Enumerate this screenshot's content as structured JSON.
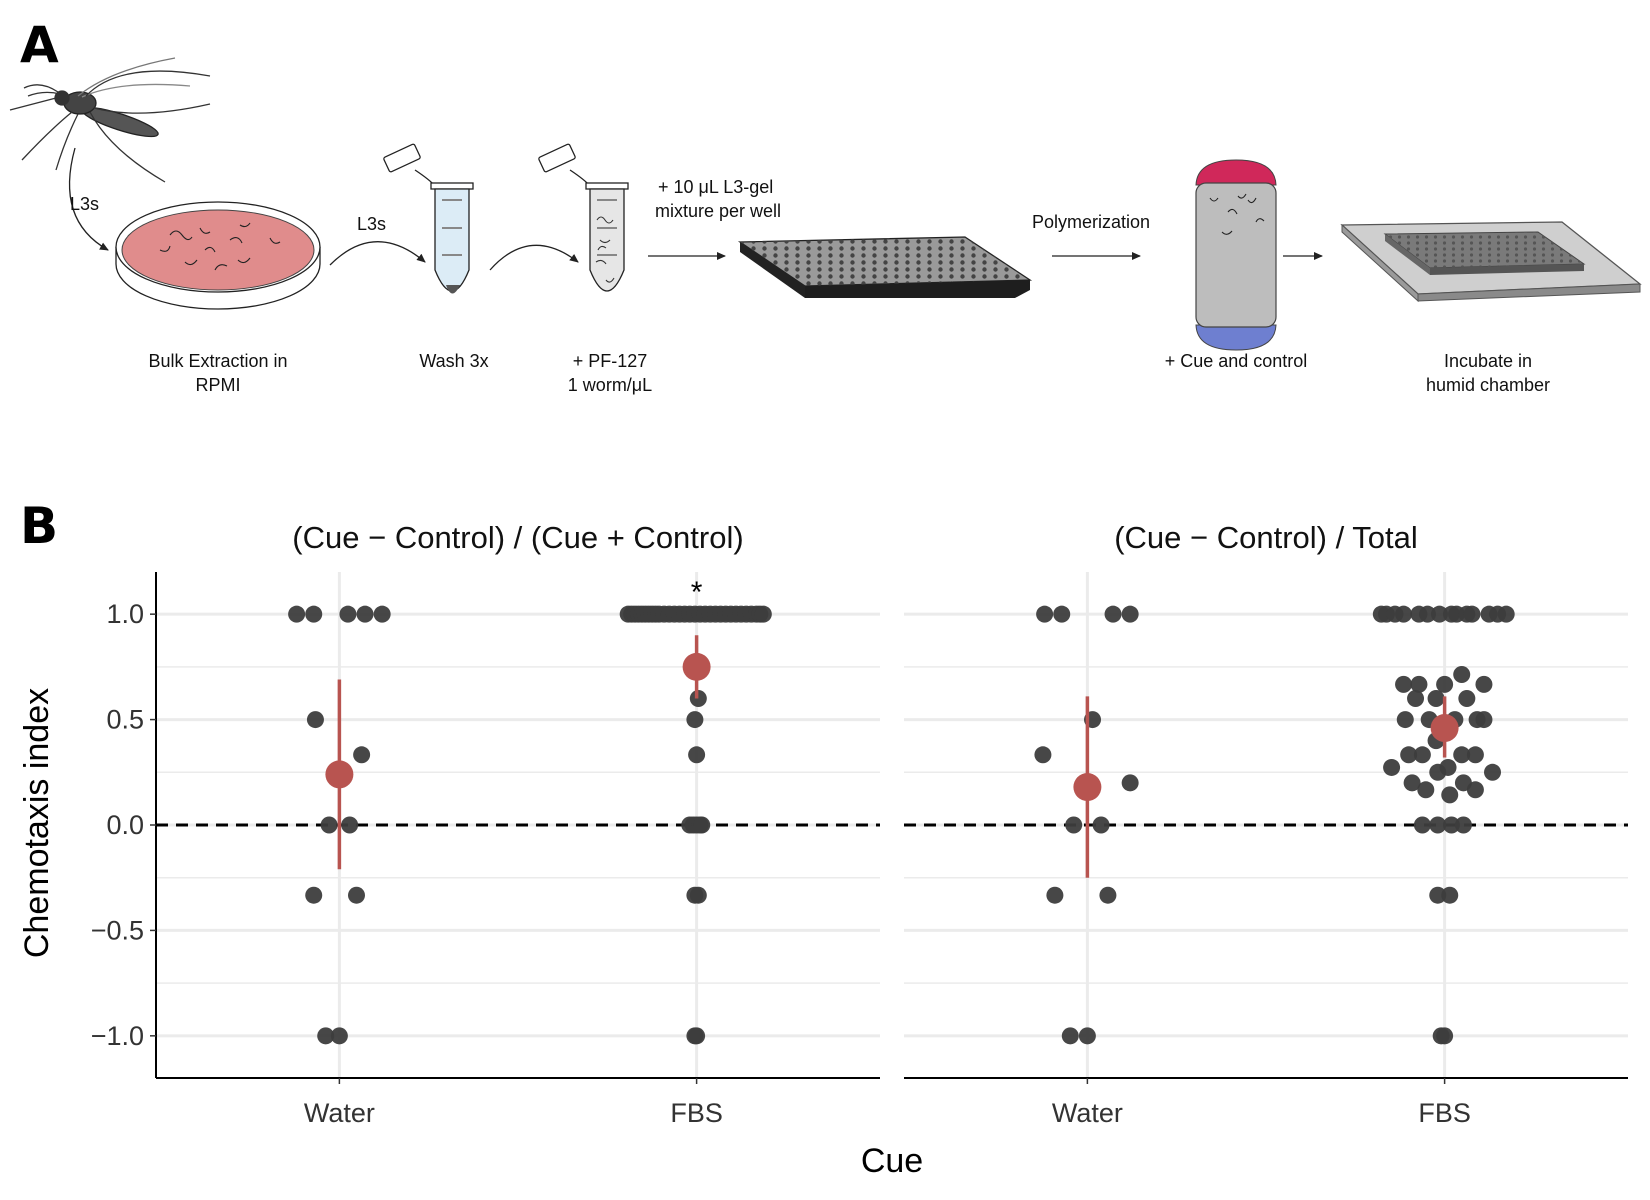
{
  "panel_a": {
    "letter": "A",
    "steps": {
      "l3s_in": "L3s",
      "l3s_mid": "L3s",
      "bulk": [
        "Bulk Extraction in",
        "RPMI"
      ],
      "wash": "Wash 3x",
      "pf": [
        "+ PF-127",
        "1 worm/μL"
      ],
      "mix": [
        "+ 10 μL L3-gel",
        "mixture per well"
      ],
      "polym": "Polymerization",
      "cue": "+ Cue and control",
      "incubate": [
        "Incubate in",
        "humid chamber"
      ]
    }
  },
  "chart_data": {
    "type": "scatter",
    "panel_letter": "B",
    "xlabel": "Cue",
    "ylabel": "Chemotaxis index",
    "categories": [
      "Water",
      "FBS"
    ],
    "ylim": [
      -1.2,
      1.2
    ],
    "yticks": [
      1.0,
      0.5,
      0.0,
      -0.5,
      -1.0
    ],
    "ytick_labels": [
      "1.0",
      "0.5",
      "0.0",
      "−0.5",
      "−1.0"
    ],
    "reference_line_y": 0,
    "grid": true,
    "colors": {
      "points": "#3d3d3d",
      "summary": "#b85450",
      "grid": "#ebebeb"
    },
    "facets": [
      {
        "title": "(Cue − Control) / (Cue + Control)",
        "groups": [
          {
            "category": "Water",
            "points": [
              {
                "dx": -0.25,
                "y": 1.0
              },
              {
                "dx": -0.15,
                "y": 1.0
              },
              {
                "dx": 0.05,
                "y": 1.0
              },
              {
                "dx": 0.15,
                "y": 1.0
              },
              {
                "dx": 0.25,
                "y": 1.0
              },
              {
                "dx": -0.14,
                "y": 0.5
              },
              {
                "dx": 0.13,
                "y": 0.333
              },
              {
                "dx": -0.06,
                "y": 0.0
              },
              {
                "dx": 0.06,
                "y": 0.0
              },
              {
                "dx": -0.15,
                "y": -0.333
              },
              {
                "dx": 0.1,
                "y": -0.333
              },
              {
                "dx": -0.08,
                "y": -1.0
              },
              {
                "dx": 0.0,
                "y": -1.0
              }
            ],
            "mean": 0.24,
            "ci": [
              -0.21,
              0.69
            ]
          },
          {
            "category": "FBS",
            "points": [
              {
                "dx": -0.4,
                "y": 1.0
              },
              {
                "dx": -0.38,
                "y": 1.0
              },
              {
                "dx": -0.36,
                "y": 1.0
              },
              {
                "dx": -0.34,
                "y": 1.0
              },
              {
                "dx": -0.32,
                "y": 1.0
              },
              {
                "dx": -0.3,
                "y": 1.0
              },
              {
                "dx": -0.28,
                "y": 1.0
              },
              {
                "dx": -0.26,
                "y": 1.0
              },
              {
                "dx": -0.24,
                "y": 1.0
              },
              {
                "dx": -0.22,
                "y": 1.0
              },
              {
                "dx": -0.19,
                "y": 1.0
              },
              {
                "dx": -0.16,
                "y": 1.0
              },
              {
                "dx": -0.13,
                "y": 1.0
              },
              {
                "dx": -0.1,
                "y": 1.0
              },
              {
                "dx": -0.07,
                "y": 1.0
              },
              {
                "dx": -0.04,
                "y": 1.0
              },
              {
                "dx": -0.01,
                "y": 1.0
              },
              {
                "dx": 0.02,
                "y": 1.0
              },
              {
                "dx": 0.05,
                "y": 1.0
              },
              {
                "dx": 0.08,
                "y": 1.0
              },
              {
                "dx": 0.11,
                "y": 1.0
              },
              {
                "dx": 0.14,
                "y": 1.0
              },
              {
                "dx": 0.17,
                "y": 1.0
              },
              {
                "dx": 0.2,
                "y": 1.0
              },
              {
                "dx": 0.23,
                "y": 1.0
              },
              {
                "dx": 0.26,
                "y": 1.0
              },
              {
                "dx": 0.29,
                "y": 1.0
              },
              {
                "dx": 0.32,
                "y": 1.0
              },
              {
                "dx": 0.35,
                "y": 1.0
              },
              {
                "dx": 0.37,
                "y": 1.0
              },
              {
                "dx": 0.39,
                "y": 1.0
              },
              {
                "dx": 0.01,
                "y": 0.6
              },
              {
                "dx": -0.01,
                "y": 0.5
              },
              {
                "dx": 0.0,
                "y": 0.333
              },
              {
                "dx": -0.04,
                "y": 0.0
              },
              {
                "dx": -0.02,
                "y": 0.0
              },
              {
                "dx": 0.0,
                "y": 0.0
              },
              {
                "dx": 0.02,
                "y": 0.0
              },
              {
                "dx": 0.03,
                "y": 0.0
              },
              {
                "dx": -0.01,
                "y": -0.333
              },
              {
                "dx": 0.01,
                "y": -0.333
              },
              {
                "dx": -0.01,
                "y": -1.0
              },
              {
                "dx": 0.0,
                "y": -1.0
              }
            ],
            "mean": 0.75,
            "ci": [
              0.6,
              0.9
            ],
            "annotation": "*"
          }
        ]
      },
      {
        "title": "(Cue − Control) / Total",
        "groups": [
          {
            "category": "Water",
            "points": [
              {
                "dx": -0.25,
                "y": 1.0
              },
              {
                "dx": -0.15,
                "y": 1.0
              },
              {
                "dx": 0.15,
                "y": 1.0
              },
              {
                "dx": 0.25,
                "y": 1.0
              },
              {
                "dx": 0.03,
                "y": 0.5
              },
              {
                "dx": -0.26,
                "y": 0.333
              },
              {
                "dx": 0.25,
                "y": 0.2
              },
              {
                "dx": -0.08,
                "y": 0.0
              },
              {
                "dx": 0.08,
                "y": 0.0
              },
              {
                "dx": -0.19,
                "y": -0.333
              },
              {
                "dx": 0.12,
                "y": -0.333
              },
              {
                "dx": -0.1,
                "y": -1.0
              },
              {
                "dx": 0.0,
                "y": -1.0
              }
            ],
            "mean": 0.18,
            "ci": [
              -0.25,
              0.61
            ]
          },
          {
            "category": "FBS",
            "points": [
              {
                "dx": -0.37,
                "y": 1.0
              },
              {
                "dx": -0.34,
                "y": 1.0
              },
              {
                "dx": -0.29,
                "y": 1.0
              },
              {
                "dx": -0.24,
                "y": 1.0
              },
              {
                "dx": -0.15,
                "y": 1.0
              },
              {
                "dx": -0.1,
                "y": 1.0
              },
              {
                "dx": -0.03,
                "y": 1.0
              },
              {
                "dx": 0.04,
                "y": 1.0
              },
              {
                "dx": 0.07,
                "y": 1.0
              },
              {
                "dx": 0.13,
                "y": 1.0
              },
              {
                "dx": 0.16,
                "y": 1.0
              },
              {
                "dx": 0.26,
                "y": 1.0
              },
              {
                "dx": 0.31,
                "y": 1.0
              },
              {
                "dx": 0.36,
                "y": 1.0
              },
              {
                "dx": -0.24,
                "y": 0.667
              },
              {
                "dx": -0.15,
                "y": 0.667
              },
              {
                "dx": 0.0,
                "y": 0.667
              },
              {
                "dx": 0.23,
                "y": 0.667
              },
              {
                "dx": 0.1,
                "y": 0.714
              },
              {
                "dx": -0.17,
                "y": 0.6
              },
              {
                "dx": -0.05,
                "y": 0.6
              },
              {
                "dx": 0.13,
                "y": 0.6
              },
              {
                "dx": -0.23,
                "y": 0.5
              },
              {
                "dx": -0.09,
                "y": 0.5
              },
              {
                "dx": 0.06,
                "y": 0.5
              },
              {
                "dx": 0.19,
                "y": 0.5
              },
              {
                "dx": 0.23,
                "y": 0.5
              },
              {
                "dx": -0.05,
                "y": 0.4
              },
              {
                "dx": -0.21,
                "y": 0.333
              },
              {
                "dx": -0.13,
                "y": 0.333
              },
              {
                "dx": 0.1,
                "y": 0.333
              },
              {
                "dx": 0.18,
                "y": 0.333
              },
              {
                "dx": -0.31,
                "y": 0.273
              },
              {
                "dx": -0.04,
                "y": 0.25
              },
              {
                "dx": 0.02,
                "y": 0.273
              },
              {
                "dx": 0.28,
                "y": 0.25
              },
              {
                "dx": -0.19,
                "y": 0.2
              },
              {
                "dx": 0.11,
                "y": 0.2
              },
              {
                "dx": -0.11,
                "y": 0.167
              },
              {
                "dx": 0.18,
                "y": 0.167
              },
              {
                "dx": 0.03,
                "y": 0.143
              },
              {
                "dx": -0.13,
                "y": 0.0
              },
              {
                "dx": -0.04,
                "y": 0.0
              },
              {
                "dx": 0.04,
                "y": 0.0
              },
              {
                "dx": 0.11,
                "y": 0.0
              },
              {
                "dx": -0.04,
                "y": -0.333
              },
              {
                "dx": 0.03,
                "y": -0.333
              },
              {
                "dx": -0.02,
                "y": -1.0
              },
              {
                "dx": 0.0,
                "y": -1.0
              }
            ],
            "mean": 0.46,
            "ci": [
              0.32,
              0.61
            ]
          }
        ]
      }
    ]
  }
}
